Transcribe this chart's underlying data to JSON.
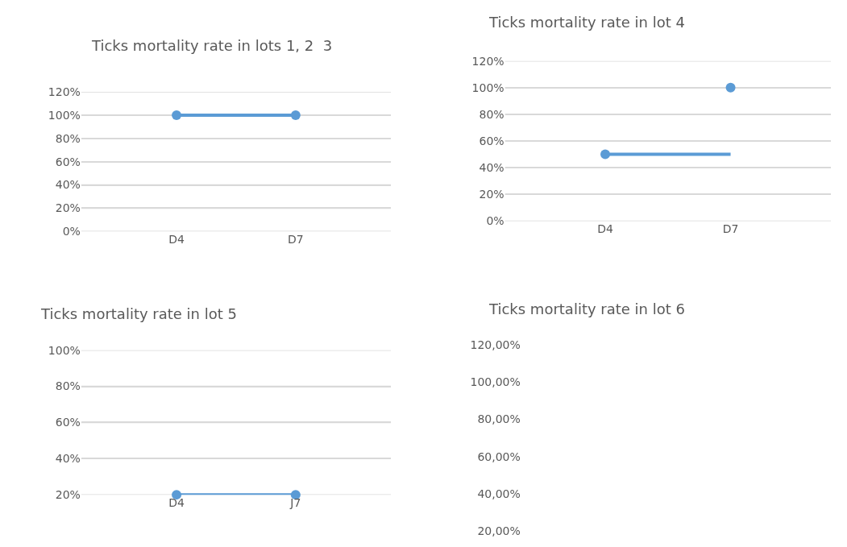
{
  "chart_data": [
    {
      "type": "line",
      "title": "Ticks mortality rate in lots 1, 2  3",
      "categories": [
        "D4",
        "D7"
      ],
      "marker": "circle",
      "grid": "y",
      "series": [
        {
          "color": "#5b9bd5",
          "values": [
            100,
            100
          ]
        }
      ],
      "ylim": [
        0,
        120
      ],
      "yticks": [
        {
          "value": 0,
          "label": "0%"
        },
        {
          "value": 20,
          "label": "20%"
        },
        {
          "value": 40,
          "label": "40%"
        },
        {
          "value": 60,
          "label": "60%"
        },
        {
          "value": 80,
          "label": "80%"
        },
        {
          "value": 100,
          "label": "100%"
        },
        {
          "value": 120,
          "label": "120%"
        }
      ]
    },
    {
      "type": "line",
      "title": "Ticks mortality rate in lot 4",
      "categories": [
        "D4",
        "D7"
      ],
      "marker": "circle",
      "grid": "y",
      "series": [
        {
          "color": "#5b9bd5",
          "values": [
            50,
            50
          ],
          "marker": "none"
        },
        {
          "type": "scatter",
          "color": "#5b9bd5",
          "values": [
            50,
            100
          ]
        }
      ],
      "ylim": [
        0,
        120
      ],
      "yticks": [
        {
          "value": 0,
          "label": "0%"
        },
        {
          "value": 20,
          "label": "20%"
        },
        {
          "value": 40,
          "label": "40%"
        },
        {
          "value": 60,
          "label": "60%"
        },
        {
          "value": 80,
          "label": "80%"
        },
        {
          "value": 100,
          "label": "100%"
        },
        {
          "value": 120,
          "label": "120%"
        }
      ]
    },
    {
      "type": "line",
      "title": "Ticks mortality rate in lot 5",
      "categories": [
        "D4",
        "J7"
      ],
      "marker": "circle",
      "grid": "y",
      "series": [
        {
          "color": "#5b9bd5",
          "values": [
            20,
            20
          ]
        }
      ],
      "ylim": [
        20,
        100
      ],
      "yticks": [
        {
          "value": 20,
          "label": "20%"
        },
        {
          "value": 40,
          "label": "40%"
        },
        {
          "value": 60,
          "label": "60%"
        },
        {
          "value": 80,
          "label": "80%"
        },
        {
          "value": 100,
          "label": "100%"
        }
      ]
    },
    {
      "type": "line",
      "title": "Ticks mortality rate in lot 6",
      "categories": [
        null,
        null
      ],
      "marker": "circle",
      "grid": false,
      "tick_labels": "y",
      "series": [
        {
          "color": "#5b9bd5",
          "values": [
            null,
            null
          ]
        }
      ],
      "ylim": [
        20,
        120
      ],
      "yticks": [
        {
          "value": 20,
          "label": "20,00%"
        },
        {
          "value": 40,
          "label": "40,00%"
        },
        {
          "value": 60,
          "label": "60,00%"
        },
        {
          "value": 80,
          "label": "80,00%"
        },
        {
          "value": 100,
          "label": "100,00%"
        },
        {
          "value": 120,
          "label": "120,00%"
        }
      ]
    }
  ]
}
